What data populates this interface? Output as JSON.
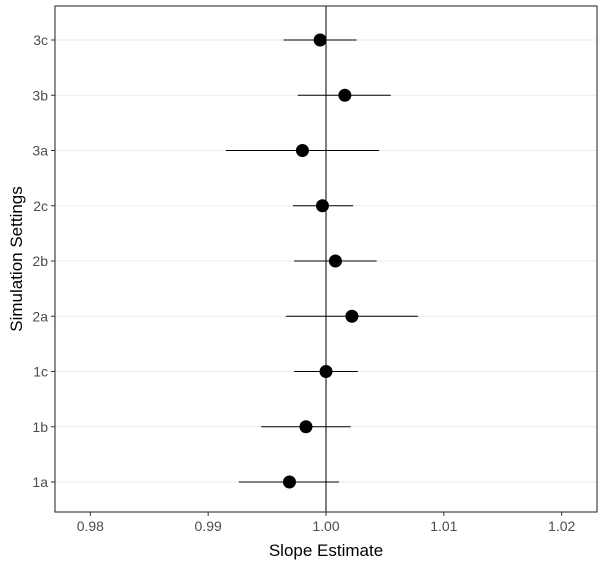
{
  "chart_data": {
    "type": "scatter",
    "subtype": "forest-plot",
    "xlabel": "Slope Estimate",
    "ylabel": "Simulation Settings",
    "xlim": [
      0.98,
      1.02
    ],
    "x_ticks": [
      0.98,
      0.99,
      1.0,
      1.01,
      1.02
    ],
    "x_tick_labels": [
      "0.98",
      "0.99",
      "1.00",
      "1.01",
      "1.02"
    ],
    "categories": [
      "1a",
      "1b",
      "1c",
      "2a",
      "2b",
      "2c",
      "3a",
      "3b",
      "3c"
    ],
    "reference_line_x": 1.0,
    "grid": "horizontal-major",
    "series": [
      {
        "points": [
          {
            "category": "1a",
            "estimate": 0.9969,
            "lower": 0.9926,
            "upper": 1.0011
          },
          {
            "category": "1b",
            "estimate": 0.9983,
            "lower": 0.9945,
            "upper": 1.0021
          },
          {
            "category": "1c",
            "estimate": 1.0,
            "lower": 0.9973,
            "upper": 1.0027
          },
          {
            "category": "2a",
            "estimate": 1.0022,
            "lower": 0.9966,
            "upper": 1.0078
          },
          {
            "category": "2b",
            "estimate": 1.0008,
            "lower": 0.9973,
            "upper": 1.0043
          },
          {
            "category": "2c",
            "estimate": 0.9997,
            "lower": 0.9972,
            "upper": 1.0023
          },
          {
            "category": "3a",
            "estimate": 0.998,
            "lower": 0.9915,
            "upper": 1.0045
          },
          {
            "category": "3b",
            "estimate": 1.0016,
            "lower": 0.9976,
            "upper": 1.0055
          },
          {
            "category": "3c",
            "estimate": 0.9995,
            "lower": 0.9964,
            "upper": 1.0026
          }
        ]
      }
    ]
  }
}
